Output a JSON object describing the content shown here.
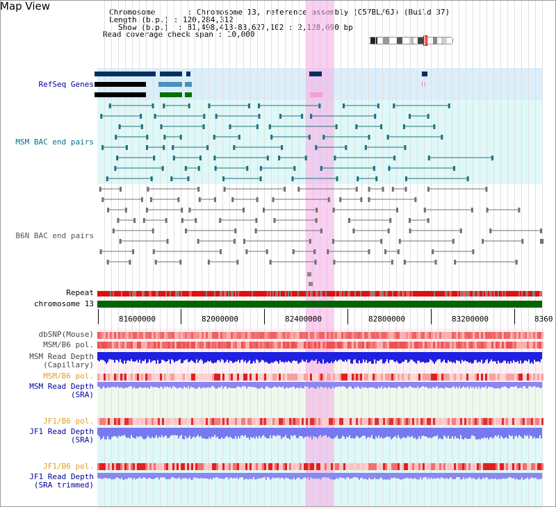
{
  "title": "Map View",
  "info": {
    "l1": "Chromosome       : Chromosome 13, reference assembly (C57BL/6J) (Build 37)",
    "l2": "Length (b.p.) : 120,284,312",
    "l3": "Show (b.p.)  : 81,498,413-83,627,102 : 2,128,690 bp",
    "l4": "Read coverage check span : 10,000"
  },
  "tracks": {
    "refseq": "RefSeq Genes",
    "msm_bac": "MSM BAC end pairs",
    "b6n_bac": "B6N BAC end pairs",
    "repeat": "Repeat",
    "chrom": "chromosome 13",
    "dbsnp": "dbSNP(Mouse)",
    "msm_b6_pol": "MSM/B6 pol.",
    "msm_depth_cap": "MSM Read Depth\n(Capillary)",
    "msm_b6_pol2": "MSM/B6 pol.",
    "msm_depth_sra": "MSM Read Depth\n(SRA)",
    "jf1_b6_pol": "JF1/B6 pol.",
    "jf1_depth_sra": "JF1 Read Depth\n(SRA)",
    "jf1_b6_pol2": "JF1/B6 pol.",
    "jf1_depth_trim": "JF1 Read Depth\n(SRA trimmed)"
  },
  "axis": {
    "ticks": [
      "81600000",
      "82000000",
      "82400000",
      "82800000",
      "83200000",
      "8360"
    ]
  },
  "colors": {
    "refseq_bg": "#dbeefa",
    "bac_bg": "#dff8f8",
    "highlight": "#f5aae6",
    "chrom": "#006400",
    "depth_blue": "#2020e0",
    "depth_light": "#8080f0",
    "label_blue": "#0000a0",
    "label_orange": "#e0a020",
    "label_teal": "#007090"
  }
}
